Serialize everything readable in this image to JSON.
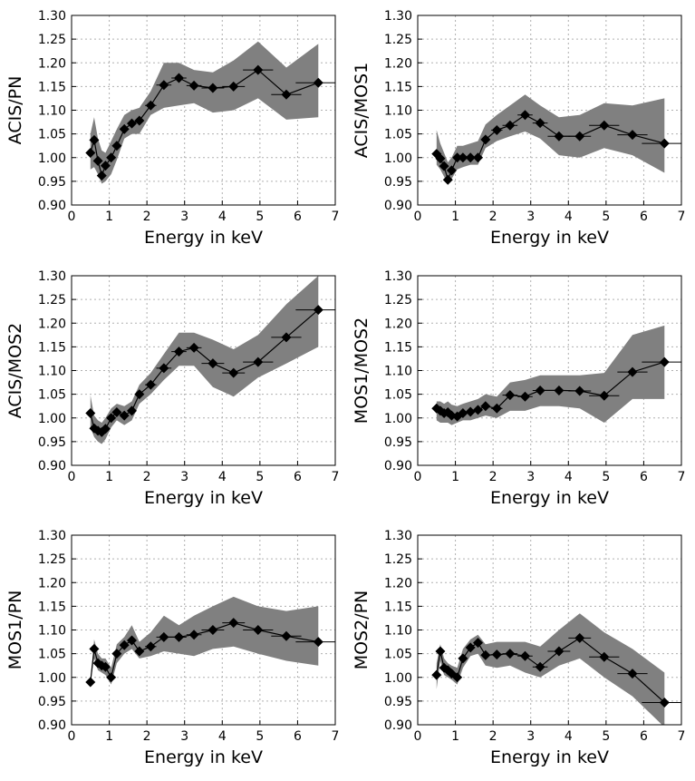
{
  "chart_data": [
    {
      "type": "line",
      "xlabel": "Energy in keV",
      "ylabel": "ACIS/PN",
      "xlim": [
        0,
        7
      ],
      "ylim": [
        0.9,
        1.3
      ],
      "xticks": [
        "0",
        "1",
        "2",
        "3",
        "4",
        "5",
        "6",
        "7"
      ],
      "yticks": [
        "0.90",
        "0.95",
        "1.00",
        "1.05",
        "1.10",
        "1.15",
        "1.20",
        "1.25",
        "1.30"
      ],
      "grid": true,
      "x": [
        0.5,
        0.6,
        0.7,
        0.8,
        0.9,
        1.05,
        1.2,
        1.4,
        1.6,
        1.8,
        2.1,
        2.45,
        2.85,
        3.25,
        3.75,
        4.3,
        4.95,
        5.7,
        6.55
      ],
      "y": [
        1.01,
        1.037,
        0.993,
        0.962,
        0.983,
        1.0,
        1.025,
        1.06,
        1.072,
        1.078,
        1.11,
        1.153,
        1.168,
        1.152,
        1.147,
        1.15,
        1.185,
        1.133,
        1.158
      ],
      "xerr": [
        0.05,
        0.05,
        0.05,
        0.05,
        0.05,
        0.1,
        0.1,
        0.1,
        0.1,
        0.1,
        0.15,
        0.2,
        0.2,
        0.2,
        0.3,
        0.3,
        0.4,
        0.4,
        0.6
      ],
      "band_low": [
        0.975,
        0.98,
        0.965,
        0.945,
        0.95,
        0.965,
        0.995,
        1.04,
        1.05,
        1.05,
        1.09,
        1.105,
        1.11,
        1.115,
        1.095,
        1.1,
        1.125,
        1.08,
        1.085
      ],
      "band_high": [
        1.05,
        1.085,
        1.04,
        1.015,
        1.01,
        1.035,
        1.06,
        1.09,
        1.1,
        1.105,
        1.14,
        1.2,
        1.2,
        1.185,
        1.18,
        1.205,
        1.245,
        1.19,
        1.24
      ]
    },
    {
      "type": "line",
      "xlabel": "Energy in keV",
      "ylabel": "ACIS/MOS1",
      "xlim": [
        0,
        7
      ],
      "ylim": [
        0.9,
        1.3
      ],
      "xticks": [
        "0",
        "1",
        "2",
        "3",
        "4",
        "5",
        "6",
        "7"
      ],
      "yticks": [
        "0.90",
        "0.95",
        "1.00",
        "1.05",
        "1.10",
        "1.15",
        "1.20",
        "1.25",
        "1.30"
      ],
      "grid": true,
      "x": [
        0.5,
        0.6,
        0.7,
        0.8,
        0.9,
        1.05,
        1.2,
        1.4,
        1.6,
        1.8,
        2.1,
        2.45,
        2.85,
        3.25,
        3.75,
        4.3,
        4.95,
        5.7,
        6.55
      ],
      "y": [
        1.008,
        0.998,
        0.982,
        0.953,
        0.973,
        1.0,
        1.0,
        1.0,
        1.0,
        1.038,
        1.058,
        1.068,
        1.09,
        1.073,
        1.045,
        1.045,
        1.068,
        1.048,
        1.03
      ],
      "xerr": [
        0.05,
        0.05,
        0.05,
        0.05,
        0.05,
        0.1,
        0.1,
        0.1,
        0.1,
        0.1,
        0.15,
        0.2,
        0.2,
        0.2,
        0.3,
        0.3,
        0.4,
        0.4,
        0.6
      ],
      "band_low": [
        0.985,
        0.975,
        0.96,
        0.945,
        0.955,
        0.975,
        0.98,
        0.985,
        0.985,
        1.02,
        1.035,
        1.045,
        1.055,
        1.04,
        1.005,
        1.0,
        1.02,
        1.005,
        0.968
      ],
      "band_high": [
        1.058,
        1.03,
        1.01,
        0.99,
        1.0,
        1.025,
        1.025,
        1.03,
        1.035,
        1.07,
        1.09,
        1.11,
        1.133,
        1.11,
        1.085,
        1.09,
        1.115,
        1.11,
        1.125
      ]
    },
    {
      "type": "line",
      "xlabel": "Energy in keV",
      "ylabel": "ACIS/MOS2",
      "xlim": [
        0,
        7
      ],
      "ylim": [
        0.9,
        1.3
      ],
      "xticks": [
        "0",
        "1",
        "2",
        "3",
        "4",
        "5",
        "6",
        "7"
      ],
      "yticks": [
        "0.90",
        "0.95",
        "1.00",
        "1.05",
        "1.10",
        "1.15",
        "1.20",
        "1.25",
        "1.30"
      ],
      "grid": true,
      "x": [
        0.5,
        0.6,
        0.7,
        0.8,
        0.9,
        1.05,
        1.2,
        1.4,
        1.6,
        1.8,
        2.1,
        2.45,
        2.85,
        3.25,
        3.75,
        4.3,
        4.95,
        5.7,
        6.55
      ],
      "y": [
        1.01,
        0.978,
        0.973,
        0.97,
        0.977,
        1.0,
        1.012,
        1.005,
        1.015,
        1.05,
        1.07,
        1.105,
        1.14,
        1.148,
        1.115,
        1.095,
        1.118,
        1.17,
        1.228
      ],
      "xerr": [
        0.05,
        0.05,
        0.05,
        0.05,
        0.05,
        0.1,
        0.1,
        0.1,
        0.1,
        0.1,
        0.15,
        0.2,
        0.2,
        0.2,
        0.3,
        0.3,
        0.4,
        0.4,
        0.6
      ],
      "band_low": [
        0.98,
        0.96,
        0.95,
        0.945,
        0.955,
        0.98,
        0.995,
        0.985,
        0.995,
        1.03,
        1.05,
        1.08,
        1.11,
        1.11,
        1.065,
        1.045,
        1.085,
        1.115,
        1.15
      ],
      "band_high": [
        1.048,
        1.005,
        0.995,
        0.99,
        1.0,
        1.02,
        1.03,
        1.025,
        1.035,
        1.07,
        1.095,
        1.135,
        1.18,
        1.18,
        1.165,
        1.145,
        1.175,
        1.24,
        1.3
      ]
    },
    {
      "type": "line",
      "xlabel": "Energy in keV",
      "ylabel": "MOS1/MOS2",
      "xlim": [
        0,
        7
      ],
      "ylim": [
        0.9,
        1.3
      ],
      "xticks": [
        "0",
        "1",
        "2",
        "3",
        "4",
        "5",
        "6",
        "7"
      ],
      "yticks": [
        "0.90",
        "0.95",
        "1.00",
        "1.05",
        "1.10",
        "1.15",
        "1.20",
        "1.25",
        "1.30"
      ],
      "grid": true,
      "x": [
        0.5,
        0.6,
        0.7,
        0.8,
        0.9,
        1.05,
        1.2,
        1.4,
        1.6,
        1.8,
        2.1,
        2.45,
        2.85,
        3.25,
        3.75,
        4.3,
        4.95,
        5.7,
        6.55
      ],
      "y": [
        1.02,
        1.015,
        1.01,
        1.012,
        1.005,
        1.003,
        1.01,
        1.013,
        1.017,
        1.025,
        1.02,
        1.048,
        1.045,
        1.058,
        1.058,
        1.057,
        1.047,
        1.097,
        1.118
      ],
      "xerr": [
        0.05,
        0.05,
        0.05,
        0.05,
        0.05,
        0.1,
        0.1,
        0.1,
        0.1,
        0.1,
        0.15,
        0.2,
        0.2,
        0.2,
        0.3,
        0.3,
        0.4,
        0.4,
        0.6
      ],
      "band_low": [
        0.995,
        0.99,
        0.99,
        0.99,
        0.985,
        0.99,
        0.995,
        0.995,
        1.0,
        1.005,
        1.0,
        1.015,
        1.015,
        1.025,
        1.025,
        1.02,
        0.99,
        1.04,
        1.04
      ],
      "band_high": [
        1.035,
        1.035,
        1.03,
        1.035,
        1.028,
        1.025,
        1.03,
        1.035,
        1.04,
        1.05,
        1.045,
        1.075,
        1.08,
        1.09,
        1.09,
        1.09,
        1.095,
        1.175,
        1.195
      ]
    },
    {
      "type": "line",
      "xlabel": "Energy in keV",
      "ylabel": "MOS1/PN",
      "xlim": [
        0,
        7
      ],
      "ylim": [
        0.9,
        1.3
      ],
      "xticks": [
        "0",
        "1",
        "2",
        "3",
        "4",
        "5",
        "6",
        "7"
      ],
      "yticks": [
        "0.90",
        "0.95",
        "1.00",
        "1.05",
        "1.10",
        "1.15",
        "1.20",
        "1.25",
        "1.30"
      ],
      "grid": true,
      "x": [
        0.5,
        0.6,
        0.7,
        0.8,
        0.9,
        1.05,
        1.2,
        1.4,
        1.6,
        1.8,
        2.1,
        2.45,
        2.85,
        3.25,
        3.75,
        4.3,
        4.95,
        5.7,
        6.55
      ],
      "y": [
        0.99,
        1.06,
        1.03,
        1.025,
        1.022,
        1.0,
        1.05,
        1.068,
        1.078,
        1.055,
        1.065,
        1.085,
        1.085,
        1.09,
        1.1,
        1.115,
        1.1,
        1.087,
        1.075
      ],
      "xerr": [
        0.05,
        0.05,
        0.05,
        0.05,
        0.05,
        0.1,
        0.1,
        0.1,
        0.1,
        0.1,
        0.15,
        0.2,
        0.2,
        0.2,
        0.3,
        0.3,
        0.4,
        0.4,
        0.6
      ],
      "band_low": [
        0.99,
        1.04,
        1.015,
        1.01,
        1.005,
        0.985,
        1.03,
        1.05,
        1.06,
        1.04,
        1.045,
        1.055,
        1.05,
        1.045,
        1.06,
        1.065,
        1.05,
        1.035,
        1.025
      ],
      "band_high": [
        0.99,
        1.08,
        1.05,
        1.04,
        1.04,
        1.02,
        1.07,
        1.085,
        1.11,
        1.075,
        1.095,
        1.13,
        1.11,
        1.13,
        1.15,
        1.17,
        1.15,
        1.14,
        1.15
      ]
    },
    {
      "type": "line",
      "xlabel": "Energy in keV",
      "ylabel": "MOS2/PN",
      "xlim": [
        0,
        7
      ],
      "ylim": [
        0.9,
        1.3
      ],
      "xticks": [
        "0",
        "1",
        "2",
        "3",
        "4",
        "5",
        "6",
        "7"
      ],
      "yticks": [
        "0.90",
        "0.95",
        "1.00",
        "1.05",
        "1.10",
        "1.15",
        "1.20",
        "1.25",
        "1.30"
      ],
      "grid": true,
      "x": [
        0.5,
        0.6,
        0.7,
        0.8,
        0.9,
        1.05,
        1.2,
        1.4,
        1.6,
        1.8,
        2.1,
        2.45,
        2.85,
        3.25,
        3.75,
        4.3,
        4.95,
        5.7,
        6.55
      ],
      "y": [
        1.005,
        1.055,
        1.02,
        1.015,
        1.008,
        1.0,
        1.04,
        1.063,
        1.073,
        1.047,
        1.048,
        1.05,
        1.045,
        1.022,
        1.055,
        1.083,
        1.043,
        1.008,
        0.947
      ],
      "xerr": [
        0.05,
        0.05,
        0.05,
        0.05,
        0.05,
        0.1,
        0.1,
        0.1,
        0.1,
        0.1,
        0.15,
        0.2,
        0.2,
        0.2,
        0.3,
        0.3,
        0.4,
        0.4,
        0.6
      ],
      "band_low": [
        0.975,
        1.035,
        1.005,
        1.0,
        0.995,
        0.985,
        1.02,
        1.045,
        1.05,
        1.025,
        1.02,
        1.025,
        1.01,
        1.0,
        1.025,
        1.04,
        1.0,
        0.96,
        0.895
      ],
      "band_high": [
        1.03,
        1.07,
        1.04,
        1.03,
        1.025,
        1.02,
        1.06,
        1.08,
        1.09,
        1.07,
        1.075,
        1.075,
        1.075,
        1.065,
        1.1,
        1.135,
        1.095,
        1.06,
        1.01
      ]
    }
  ]
}
